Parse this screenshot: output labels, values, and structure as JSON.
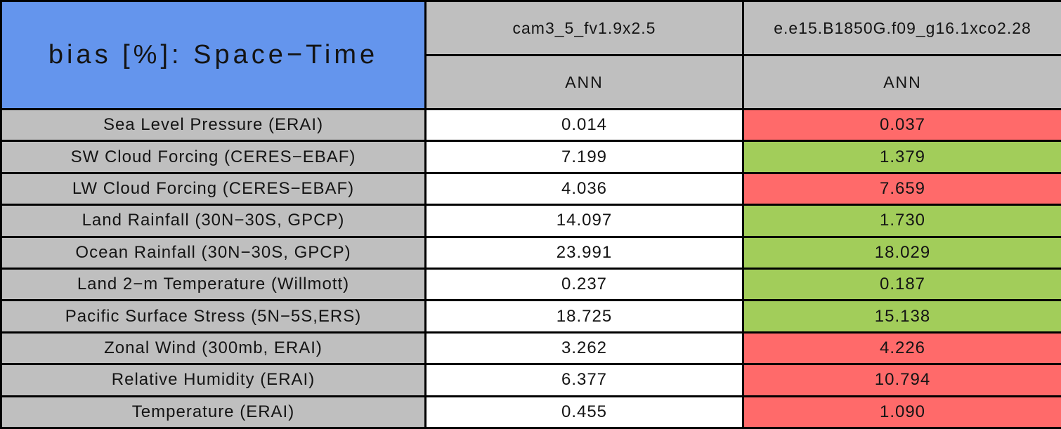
{
  "chart_data": {
    "type": "table",
    "title": "bias [%]: Space−Time",
    "columns": [
      "cam3_5_fv1.9x2.5",
      "e.e15.B1850G.f09_g16.1xco2.28"
    ],
    "subcolumns": [
      "ANN",
      "ANN"
    ],
    "rows": [
      {
        "label": "Sea Level Pressure (ERAI)",
        "values": [
          0.014,
          0.037
        ],
        "display": [
          "0.014",
          "0.037"
        ],
        "cell_colors": [
          "white",
          "red"
        ]
      },
      {
        "label": "SW Cloud Forcing (CERES−EBAF)",
        "values": [
          7.199,
          1.379
        ],
        "display": [
          "7.199",
          "1.379"
        ],
        "cell_colors": [
          "white",
          "green"
        ]
      },
      {
        "label": "LW Cloud Forcing (CERES−EBAF)",
        "values": [
          4.036,
          7.659
        ],
        "display": [
          "4.036",
          "7.659"
        ],
        "cell_colors": [
          "white",
          "red"
        ]
      },
      {
        "label": "Land Rainfall (30N−30S, GPCP)",
        "values": [
          14.097,
          1.73
        ],
        "display": [
          "14.097",
          "1.730"
        ],
        "cell_colors": [
          "white",
          "green"
        ]
      },
      {
        "label": "Ocean Rainfall (30N−30S, GPCP)",
        "values": [
          23.991,
          18.029
        ],
        "display": [
          "23.991",
          "18.029"
        ],
        "cell_colors": [
          "white",
          "green"
        ]
      },
      {
        "label": "Land 2−m Temperature (Willmott)",
        "values": [
          0.237,
          0.187
        ],
        "display": [
          "0.237",
          "0.187"
        ],
        "cell_colors": [
          "white",
          "green"
        ]
      },
      {
        "label": "Pacific Surface Stress (5N−5S,ERS)",
        "values": [
          18.725,
          15.138
        ],
        "display": [
          "18.725",
          "15.138"
        ],
        "cell_colors": [
          "white",
          "green"
        ]
      },
      {
        "label": "Zonal Wind (300mb, ERAI)",
        "values": [
          3.262,
          4.226
        ],
        "display": [
          "3.262",
          "4.226"
        ],
        "cell_colors": [
          "white",
          "red"
        ]
      },
      {
        "label": "Relative Humidity (ERAI)",
        "values": [
          6.377,
          10.794
        ],
        "display": [
          "6.377",
          "10.794"
        ],
        "cell_colors": [
          "white",
          "red"
        ]
      },
      {
        "label": "Temperature (ERAI)",
        "values": [
          0.455,
          1.09
        ],
        "display": [
          "0.455",
          "1.090"
        ],
        "cell_colors": [
          "white",
          "red"
        ]
      }
    ]
  },
  "colors": {
    "title_bg": "#6495ED",
    "header_bg": "#BFBFBF",
    "value_bg": "#FFFFFF",
    "better_bg": "#A2CD5A",
    "worse_bg": "#FF6A6A",
    "border": "#000000"
  }
}
